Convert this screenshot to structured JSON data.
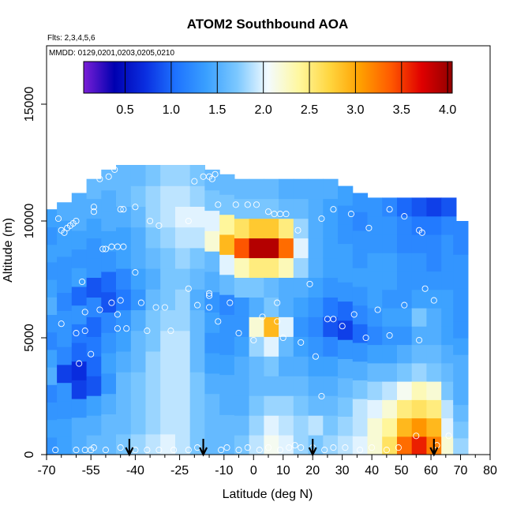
{
  "chart_data": {
    "type": "heatmap",
    "title": "ATOM2 Southbound AOA",
    "subtitle_flights": "Flts: 2,3,4,5,6",
    "subtitle_dates": "MMDD: 0129,0201,0203,0205,0210",
    "xlabel": "Latitude (deg N)",
    "ylabel": "Altitude (m)",
    "xlim": [
      -70,
      80
    ],
    "ylim": [
      0,
      17500
    ],
    "x_ticks": [
      -70,
      -55,
      -40,
      -25,
      -10,
      0,
      10,
      20,
      30,
      40,
      50,
      60,
      70,
      80
    ],
    "x_tick_labels": [
      "-70",
      "-55",
      "-40",
      "-25",
      "-10",
      "0",
      "10",
      "20",
      "30",
      "40",
      "50",
      "60",
      "70",
      "80"
    ],
    "x_minor_ticks": [
      -65,
      -60,
      -50,
      -45,
      -35,
      -30,
      -20,
      -15,
      -5,
      5,
      15,
      25,
      35,
      45,
      55,
      65,
      75
    ],
    "y_ticks": [
      0,
      5000,
      10000,
      15000
    ],
    "y_tick_labels": [
      "0",
      "5000",
      "10000",
      "15000"
    ],
    "colorbar": {
      "min": 0.05,
      "max": 4.05,
      "ticks": [
        0.5,
        1.0,
        1.5,
        2.0,
        2.5,
        3.0,
        3.5,
        4.0
      ],
      "tick_labels": [
        "0.5",
        "1.0",
        "1.5",
        "2.0",
        "2.5",
        "3.0",
        "3.5",
        "4.0"
      ],
      "colors": [
        "#7a1fd6",
        "#0000b0",
        "#0a2ee0",
        "#1e73ff",
        "#3aa0ff",
        "#7cc8ff",
        "#f3fbff",
        "#fff8a0",
        "#ffd640",
        "#ffa000",
        "#ff5a00",
        "#e00000",
        "#900000"
      ]
    },
    "arrows_latitude": [
      -42,
      -17,
      20,
      61
    ],
    "columns": [
      {
        "lat": -68,
        "top": 10500,
        "levels": [
          1.3,
          1.4,
          1.3,
          1.2,
          1.5,
          1.4,
          1.2,
          1.3,
          1.5,
          1.4,
          1.3,
          1.4,
          1.3,
          1.4
        ]
      },
      {
        "lat": -64,
        "top": 10800,
        "levels": [
          1.4,
          1.4,
          1.3,
          1.3,
          0.8,
          1.2,
          1.3,
          1.3,
          1.2,
          1.3,
          1.3,
          1.4,
          1.4,
          1.5
        ]
      },
      {
        "lat": -59,
        "top": 11200,
        "levels": [
          1.5,
          1.5,
          1.3,
          0.8,
          0.7,
          1.0,
          1.1,
          1.3,
          1.0,
          1.4,
          1.3,
          1.4,
          1.5,
          1.5
        ]
      },
      {
        "lat": -54,
        "top": 11800,
        "levels": [
          1.6,
          1.5,
          1.4,
          0.9,
          1.0,
          1.1,
          1.0,
          1.2,
          0.9,
          1.3,
          1.3,
          1.4,
          1.5,
          1.6
        ]
      },
      {
        "lat": -49,
        "top": 12200,
        "levels": [
          1.6,
          1.6,
          1.5,
          1.3,
          1.4,
          1.3,
          1.2,
          0.9,
          1.0,
          1.3,
          1.4,
          1.5,
          1.5,
          1.6
        ]
      },
      {
        "lat": -44,
        "top": 12400,
        "levels": [
          1.7,
          1.6,
          1.6,
          1.6,
          1.5,
          1.4,
          1.3,
          1.1,
          1.2,
          1.4,
          1.4,
          1.5,
          1.6,
          1.6
        ]
      },
      {
        "lat": -39,
        "top": 12400,
        "levels": [
          1.8,
          1.7,
          1.7,
          1.7,
          1.6,
          1.6,
          1.5,
          1.3,
          1.4,
          1.5,
          1.5,
          1.6,
          1.7,
          1.6
        ]
      },
      {
        "lat": -34,
        "top": 12400,
        "levels": [
          1.9,
          1.8,
          1.8,
          1.8,
          1.8,
          1.7,
          1.7,
          1.6,
          1.5,
          1.6,
          1.7,
          1.8,
          1.8,
          1.7
        ]
      },
      {
        "lat": -29,
        "top": 12400,
        "levels": [
          2.0,
          1.9,
          1.9,
          1.9,
          1.9,
          1.9,
          1.8,
          1.7,
          1.7,
          1.7,
          1.8,
          1.9,
          1.9,
          1.8
        ]
      },
      {
        "lat": -24,
        "top": 12400,
        "levels": [
          1.9,
          1.9,
          1.9,
          1.9,
          1.9,
          1.9,
          1.8,
          1.8,
          1.7,
          1.8,
          1.9,
          2.0,
          1.9,
          1.8
        ]
      },
      {
        "lat": -19,
        "top": 12400,
        "levels": [
          1.7,
          1.7,
          1.7,
          1.7,
          1.6,
          1.6,
          1.6,
          1.5,
          1.6,
          1.7,
          1.9,
          2.0,
          1.8,
          1.7
        ]
      },
      {
        "lat": -14,
        "top": 12200,
        "levels": [
          1.6,
          1.6,
          1.6,
          1.5,
          1.4,
          1.3,
          1.4,
          1.3,
          1.5,
          1.6,
          2.2,
          2.0,
          1.7,
          1.6
        ]
      },
      {
        "lat": -9,
        "top": 12000,
        "levels": [
          1.6,
          1.6,
          1.5,
          1.5,
          1.4,
          1.3,
          1.3,
          1.2,
          1.6,
          2.0,
          2.9,
          2.4,
          1.7,
          1.6
        ]
      },
      {
        "lat": -4,
        "top": 11800,
        "levels": [
          1.7,
          1.6,
          1.5,
          1.5,
          1.5,
          1.4,
          1.3,
          1.3,
          1.7,
          2.3,
          3.4,
          2.6,
          1.7,
          1.6
        ]
      },
      {
        "lat": 1,
        "top": 11800,
        "levels": [
          1.9,
          1.8,
          1.7,
          1.6,
          1.6,
          1.8,
          2.2,
          1.5,
          1.7,
          2.5,
          3.9,
          2.8,
          1.7,
          1.6
        ]
      },
      {
        "lat": 6,
        "top": 11800,
        "levels": [
          2.1,
          2.0,
          1.8,
          1.6,
          1.7,
          2.0,
          2.9,
          1.7,
          1.6,
          2.5,
          3.9,
          2.8,
          1.7,
          1.6
        ]
      },
      {
        "lat": 11,
        "top": 11800,
        "levels": [
          2.0,
          1.9,
          1.8,
          1.6,
          1.5,
          1.6,
          2.0,
          1.5,
          1.5,
          2.3,
          3.3,
          2.5,
          1.6,
          1.5
        ]
      },
      {
        "lat": 16,
        "top": 11800,
        "levels": [
          1.8,
          1.8,
          1.7,
          1.6,
          1.5,
          1.4,
          1.3,
          1.4,
          1.5,
          1.8,
          2.0,
          1.8,
          1.6,
          1.5
        ]
      },
      {
        "lat": 21,
        "top": 11800,
        "levels": [
          1.7,
          1.9,
          1.6,
          1.5,
          1.4,
          1.3,
          1.2,
          1.3,
          1.4,
          1.5,
          1.5,
          1.5,
          1.5,
          1.5
        ]
      },
      {
        "lat": 26,
        "top": 11800,
        "levels": [
          1.8,
          1.7,
          1.6,
          1.5,
          1.4,
          1.2,
          0.9,
          1.1,
          1.3,
          1.4,
          1.4,
          1.4,
          1.4,
          1.5
        ]
      },
      {
        "lat": 31,
        "top": 11500,
        "levels": [
          1.9,
          1.8,
          1.7,
          1.6,
          1.5,
          1.3,
          0.8,
          1.0,
          1.3,
          1.4,
          1.4,
          1.3,
          1.3,
          1.4
        ]
      },
      {
        "lat": 36,
        "top": 11200,
        "levels": [
          2.0,
          1.9,
          1.9,
          1.7,
          1.5,
          1.3,
          1.0,
          1.2,
          1.3,
          1.4,
          1.3,
          1.3,
          1.2,
          1.3
        ]
      },
      {
        "lat": 41,
        "top": 11000,
        "levels": [
          2.2,
          2.2,
          2.0,
          1.8,
          1.6,
          1.4,
          1.2,
          1.3,
          1.4,
          1.4,
          1.4,
          1.3,
          1.3,
          1.3
        ]
      },
      {
        "lat": 46,
        "top": 11000,
        "levels": [
          2.6,
          2.4,
          2.2,
          1.9,
          1.6,
          1.4,
          1.3,
          1.4,
          1.3,
          1.4,
          1.4,
          1.3,
          1.3,
          1.2
        ]
      },
      {
        "lat": 51,
        "top": 11000,
        "levels": [
          3.3,
          2.9,
          2.5,
          2.1,
          1.7,
          1.5,
          1.3,
          1.4,
          1.3,
          1.3,
          1.3,
          1.2,
          1.2,
          1.0
        ]
      },
      {
        "lat": 56,
        "top": 11000,
        "levels": [
          3.6,
          3.1,
          2.6,
          2.3,
          1.8,
          1.6,
          1.5,
          1.7,
          1.4,
          1.3,
          1.3,
          1.2,
          1.1,
          0.9
        ]
      },
      {
        "lat": 61,
        "top": 11000,
        "levels": [
          3.2,
          2.9,
          2.5,
          2.2,
          1.7,
          1.6,
          1.5,
          1.5,
          1.4,
          1.3,
          1.2,
          1.2,
          1.1,
          0.8
        ]
      },
      {
        "lat": 66,
        "top": 11000,
        "levels": [
          2.2,
          2.0,
          1.9,
          1.7,
          1.6,
          1.5,
          1.4,
          1.4,
          1.4,
          1.3,
          1.3,
          1.3,
          1.2,
          0.9
        ]
      },
      {
        "lat": 70,
        "top": 10000,
        "levels": [
          1.8,
          1.7,
          1.6,
          1.5,
          1.5,
          1.5,
          1.4,
          1.3,
          1.3,
          1.3,
          1.3,
          1.3,
          1.2,
          1.2
        ]
      }
    ],
    "sample_points": [
      [
        -66,
        10100
      ],
      [
        -65,
        9600
      ],
      [
        -64,
        9500
      ],
      [
        -63,
        9700
      ],
      [
        -62,
        9800
      ],
      [
        -61,
        9900
      ],
      [
        -60,
        10000
      ],
      [
        -57,
        12000
      ],
      [
        -55,
        12100
      ],
      [
        -52,
        11800
      ],
      [
        -49,
        11900
      ],
      [
        -47,
        12200
      ],
      [
        -54,
        10600
      ],
      [
        -54,
        10400
      ],
      [
        -45,
        10500
      ],
      [
        -44,
        10500
      ],
      [
        -40,
        10600
      ],
      [
        -35,
        10000
      ],
      [
        -32,
        9800
      ],
      [
        -22,
        10000
      ],
      [
        -20,
        11700
      ],
      [
        -17,
        11900
      ],
      [
        -15,
        11900
      ],
      [
        -13,
        12000
      ],
      [
        -14,
        11800
      ],
      [
        -12,
        10700
      ],
      [
        -6,
        10700
      ],
      [
        -2,
        10700
      ],
      [
        1,
        10700
      ],
      [
        5,
        10400
      ],
      [
        7,
        10300
      ],
      [
        9,
        10300
      ],
      [
        11,
        10300
      ],
      [
        15,
        9600
      ],
      [
        23,
        10100
      ],
      [
        27,
        10500
      ],
      [
        33,
        10300
      ],
      [
        39,
        9700
      ],
      [
        46,
        10500
      ],
      [
        51,
        10200
      ],
      [
        56,
        9600
      ],
      [
        57,
        9500
      ],
      [
        60,
        11300
      ],
      [
        63,
        11300
      ],
      [
        -51,
        8800
      ],
      [
        -50,
        8800
      ],
      [
        -48,
        8900
      ],
      [
        -46,
        8900
      ],
      [
        -44,
        8900
      ],
      [
        -40,
        7800
      ],
      [
        -58,
        7400
      ],
      [
        -22,
        7100
      ],
      [
        -15,
        6800
      ],
      [
        -15,
        6900
      ],
      [
        -15,
        6300
      ],
      [
        -19,
        6400
      ],
      [
        -30,
        6300
      ],
      [
        -33,
        6300
      ],
      [
        -38,
        6500
      ],
      [
        -45,
        6600
      ],
      [
        -48,
        6500
      ],
      [
        -52,
        6200
      ],
      [
        -57,
        6100
      ],
      [
        -46,
        6000
      ],
      [
        -8,
        6500
      ],
      [
        8,
        6500
      ],
      [
        19,
        7300
      ],
      [
        21,
        4200
      ],
      [
        25,
        5800
      ],
      [
        27,
        5800
      ],
      [
        30,
        5500
      ],
      [
        34,
        6000
      ],
      [
        38,
        5000
      ],
      [
        42,
        6200
      ],
      [
        46,
        5100
      ],
      [
        51,
        6400
      ],
      [
        56,
        4900
      ],
      [
        58,
        7100
      ],
      [
        61,
        6600
      ],
      [
        -65,
        5600
      ],
      [
        -60,
        5200
      ],
      [
        -57,
        5300
      ],
      [
        -46,
        5400
      ],
      [
        -43,
        5400
      ],
      [
        -36,
        5300
      ],
      [
        -28,
        5300
      ],
      [
        -12,
        5700
      ],
      [
        -5,
        5200
      ],
      [
        0,
        4900
      ],
      [
        3,
        5900
      ],
      [
        8,
        5700
      ],
      [
        10,
        5000
      ],
      [
        16,
        4800
      ],
      [
        23,
        2500
      ],
      [
        -59,
        3900
      ],
      [
        -55,
        4300
      ],
      [
        -67,
        200
      ],
      [
        -60,
        200
      ],
      [
        -57,
        200
      ],
      [
        -55,
        200
      ],
      [
        -54,
        300
      ],
      [
        -50,
        200
      ],
      [
        -45,
        300
      ],
      [
        -40,
        200
      ],
      [
        -36,
        200
      ],
      [
        -32,
        200
      ],
      [
        -27,
        200
      ],
      [
        -22,
        200
      ],
      [
        -19,
        300
      ],
      [
        -11,
        200
      ],
      [
        -9,
        300
      ],
      [
        -5,
        200
      ],
      [
        -2,
        300
      ],
      [
        2,
        200
      ],
      [
        5,
        300
      ],
      [
        9,
        200
      ],
      [
        12,
        300
      ],
      [
        14,
        400
      ],
      [
        16,
        300
      ],
      [
        20,
        300
      ],
      [
        24,
        200
      ],
      [
        27,
        300
      ],
      [
        31,
        300
      ],
      [
        36,
        200
      ],
      [
        40,
        300
      ],
      [
        45,
        200
      ],
      [
        49,
        300
      ],
      [
        55,
        800
      ],
      [
        66,
        800
      ],
      [
        62,
        400
      ]
    ]
  }
}
